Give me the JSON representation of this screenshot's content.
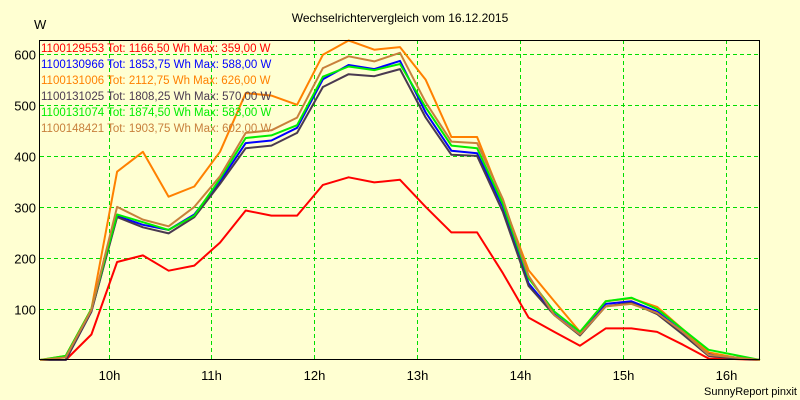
{
  "chart_data": {
    "type": "line",
    "title": "Wechselrichtervergleich vom 16.12.2015",
    "ylabel": "W",
    "xlabel": "",
    "footer": "SunnyReport pinxit",
    "xlim_hours": [
      9.333,
      16.333
    ],
    "ylim": [
      0,
      627
    ],
    "grid": true,
    "legend_placement": "top-left",
    "x_ticks": [
      10,
      11,
      12,
      13,
      14,
      15,
      16
    ],
    "x_tick_labels": [
      "10h",
      "11h",
      "12h",
      "13h",
      "14h",
      "15h",
      "16h"
    ],
    "y_ticks": [
      100,
      200,
      300,
      400,
      500,
      600
    ],
    "y_tick_labels": [
      "100",
      "200",
      "300",
      "400",
      "500",
      "600"
    ],
    "x_start_hour": 9.333,
    "x_step_hours": 0.25,
    "series": [
      {
        "id": "1100129553",
        "legend": "1100129553 Tot: 1166,50 Wh Max: 359,00 W",
        "color": "#ff0000",
        "values": [
          0,
          0,
          50,
          192,
          205,
          175,
          185,
          230,
          293,
          283,
          283,
          343,
          358,
          348,
          353,
          300,
          250,
          250,
          170,
          83,
          55,
          28,
          62,
          62,
          55,
          30,
          3,
          2,
          0
        ]
      },
      {
        "id": "1100130966",
        "legend": "1100130966 Tot: 1853,75 Wh Max: 588,00 W",
        "color": "#0000ff",
        "values": [
          0,
          0,
          95,
          282,
          265,
          255,
          285,
          350,
          425,
          430,
          455,
          550,
          578,
          570,
          586,
          485,
          410,
          405,
          300,
          150,
          90,
          50,
          110,
          115,
          95,
          55,
          12,
          5,
          0
        ]
      },
      {
        "id": "1100131006",
        "legend": "1100131006 Tot: 2112,75 Wh Max: 626,00 W",
        "color": "#ff8000",
        "values": [
          0,
          8,
          100,
          369,
          408,
          320,
          340,
          408,
          523,
          518,
          500,
          598,
          626,
          608,
          613,
          549,
          437,
          437,
          310,
          176,
          115,
          55,
          115,
          121,
          104,
          60,
          15,
          5,
          0
        ]
      },
      {
        "id": "1100131025",
        "legend": "1100131025 Tot: 1808,25 Wh Max: 570,00 W",
        "color": "#4a3a50",
        "values": [
          0,
          0,
          95,
          280,
          260,
          248,
          280,
          345,
          415,
          420,
          445,
          535,
          560,
          556,
          570,
          475,
          402,
          400,
          290,
          145,
          88,
          48,
          105,
          112,
          90,
          50,
          8,
          3,
          0
        ]
      },
      {
        "id": "1100131074",
        "legend": "1100131074 Tot: 1874,50 Wh Max: 583,00 W",
        "color": "#00ee00",
        "values": [
          0,
          8,
          100,
          285,
          270,
          255,
          283,
          355,
          435,
          440,
          460,
          555,
          575,
          568,
          580,
          495,
          420,
          415,
          305,
          160,
          95,
          55,
          115,
          122,
          100,
          60,
          20,
          10,
          0
        ]
      },
      {
        "id": "1100148421",
        "legend": "1100148421 Tot: 1903,75 Wh Max: 602,00 W",
        "color": "#c8803c",
        "values": [
          0,
          5,
          98,
          300,
          275,
          262,
          300,
          360,
          445,
          450,
          475,
          572,
          595,
          585,
          602,
          505,
          428,
          425,
          315,
          165,
          88,
          50,
          105,
          110,
          92,
          55,
          10,
          5,
          0
        ]
      }
    ]
  }
}
